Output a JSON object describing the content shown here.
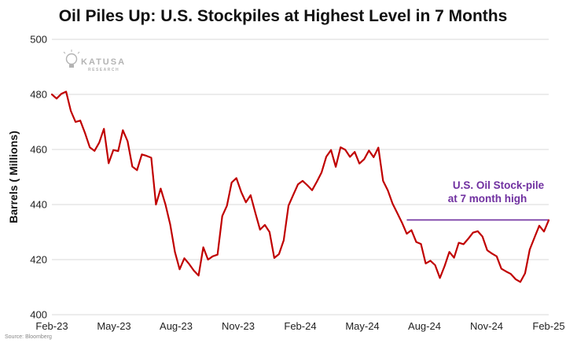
{
  "chart_data": {
    "type": "line",
    "title": "Oil Piles Up: U.S. Stockpiles at Highest Level in 7 Months",
    "ylabel": "Barrels ( Millions)",
    "xlabel": "",
    "ylim": [
      400,
      500
    ],
    "yticks": [
      400,
      420,
      440,
      460,
      480,
      500
    ],
    "x_tick_labels": [
      "Feb-23",
      "May-23",
      "Aug-23",
      "Nov-23",
      "Feb-24",
      "May-24",
      "Aug-24",
      "Nov-24",
      "Feb-25"
    ],
    "grid": "horizontal",
    "series": [
      {
        "color": "#c00000",
        "values": [
          480.0,
          478.5,
          480.2,
          481.0,
          474.0,
          470.0,
          470.5,
          466.0,
          460.8,
          459.5,
          462.5,
          467.5,
          455.0,
          459.8,
          459.4,
          467.0,
          463.0,
          453.8,
          452.5,
          458.2,
          457.7,
          457.0,
          440.0,
          445.8,
          440.0,
          432.8,
          422.8,
          416.5,
          420.5,
          418.4,
          416.0,
          414.2,
          424.5,
          420.0,
          421.2,
          421.8,
          435.8,
          439.6,
          448.0,
          449.6,
          444.6,
          440.8,
          443.4,
          437.0,
          430.9,
          432.6,
          430.0,
          420.6,
          422.0,
          427.0,
          439.6,
          443.5,
          447.3,
          448.6,
          447.0,
          445.2,
          448.3,
          451.7,
          457.4,
          459.8,
          453.7,
          460.8,
          459.9,
          457.3,
          459.1,
          454.9,
          456.5,
          459.6,
          457.2,
          460.7,
          448.6,
          445.1,
          440.3,
          436.9,
          433.4,
          429.4,
          430.7,
          426.4,
          425.7,
          418.6,
          419.6,
          418.0,
          413.3,
          417.7,
          422.8,
          420.7,
          426.1,
          425.6,
          427.6,
          429.8,
          430.3,
          428.4,
          423.4,
          422.2,
          421.2,
          416.7,
          415.7,
          414.8,
          412.9,
          411.9,
          415.0,
          423.7,
          428.0,
          432.3,
          430.2,
          434.3
        ]
      }
    ],
    "reference_line": {
      "value": 434.4,
      "color": "#7030a0",
      "label_line1": "U.S. Oil Stock-pile",
      "label_line2": "at 7 month high"
    },
    "source": "Source: Bloomberg",
    "logo": {
      "main": "KATUSA",
      "sub": "RESEARCH"
    }
  }
}
